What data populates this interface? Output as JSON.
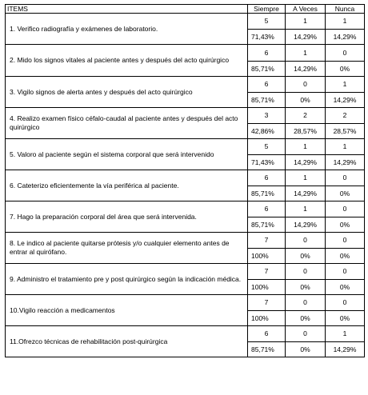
{
  "headers": {
    "items": "ITEMS",
    "siempre": "Siempre",
    "a_veces": "A Veces",
    "nunca": "Nunca"
  },
  "rows": [
    {
      "item": "1.  Verifico radiografía y exámenes de laboratorio.",
      "counts": [
        "5",
        "1",
        "1"
      ],
      "pcts": [
        "71,43%",
        "14,29%",
        "14,29%"
      ],
      "h": [
        19,
        18
      ]
    },
    {
      "item": "2.  Mido los signos vitales al paciente antes y después del acto quirúrgico",
      "counts": [
        "6",
        "1",
        "0"
      ],
      "pcts": [
        "85,71%",
        "14,29%",
        "0%"
      ],
      "h": [
        20,
        18
      ]
    },
    {
      "item": "3.  Vigilo signos de alerta antes y después del acto quirúrgico",
      "counts": [
        "6",
        "0",
        "1"
      ],
      "pcts": [
        "85,71%",
        "0%",
        "14,29%"
      ],
      "h": [
        19,
        18
      ]
    },
    {
      "item": "4.  Realizo examen físico céfalo-caudal al paciente antes y después del acto quirúrgico",
      "counts": [
        "3",
        "2",
        "2"
      ],
      "pcts": [
        "42,86%",
        "28,57%",
        "28,57%"
      ],
      "h": [
        19,
        18
      ]
    },
    {
      "item": "5.  Valoro al paciente según el sistema corporal que será intervenido",
      "counts": [
        "5",
        "1",
        "1"
      ],
      "pcts": [
        "71,43%",
        "14,29%",
        "14,29%"
      ],
      "h": [
        19,
        18
      ]
    },
    {
      "item": "6.  Cateterizo eficientemente la vía periférica al paciente.",
      "counts": [
        "6",
        "1",
        "0"
      ],
      "pcts": [
        "85,71%",
        "14,29%",
        "0%"
      ],
      "h": [
        19,
        18
      ]
    },
    {
      "item": "7.  Hago la preparación corporal del área que será intervenida.",
      "counts": [
        "6",
        "1",
        "0"
      ],
      "pcts": [
        "85,71%",
        "14,29%",
        "0%"
      ],
      "h": [
        19,
        18
      ]
    },
    {
      "item": "8.  Le indico al paciente quitarse prótesis y/o cualquier elemento antes de entrar al quirófano.",
      "counts": [
        "7",
        "0",
        "0"
      ],
      "pcts": [
        "100%",
        "0%",
        "0%"
      ],
      "h": [
        19,
        18
      ]
    },
    {
      "item": "9.  Administro el tratamiento pre y  post quirúrgico según la indicación médica.",
      "counts": [
        "7",
        "0",
        "0"
      ],
      "pcts": [
        "100%",
        "0%",
        "0%"
      ],
      "h": [
        19,
        18
      ]
    },
    {
      "item": "10.Vigilo reacción a medicamentos",
      "counts": [
        "7",
        "0",
        "0"
      ],
      "pcts": [
        "100%",
        "0%",
        "0%"
      ],
      "h": [
        19,
        18
      ]
    },
    {
      "item": "11.Ofrezco técnicas de rehabilitación post-quirúrgica",
      "counts": [
        "6",
        "0",
        "1"
      ],
      "pcts": [
        "85,71%",
        "0%",
        "14,29%"
      ],
      "h": [
        19,
        18
      ]
    }
  ]
}
